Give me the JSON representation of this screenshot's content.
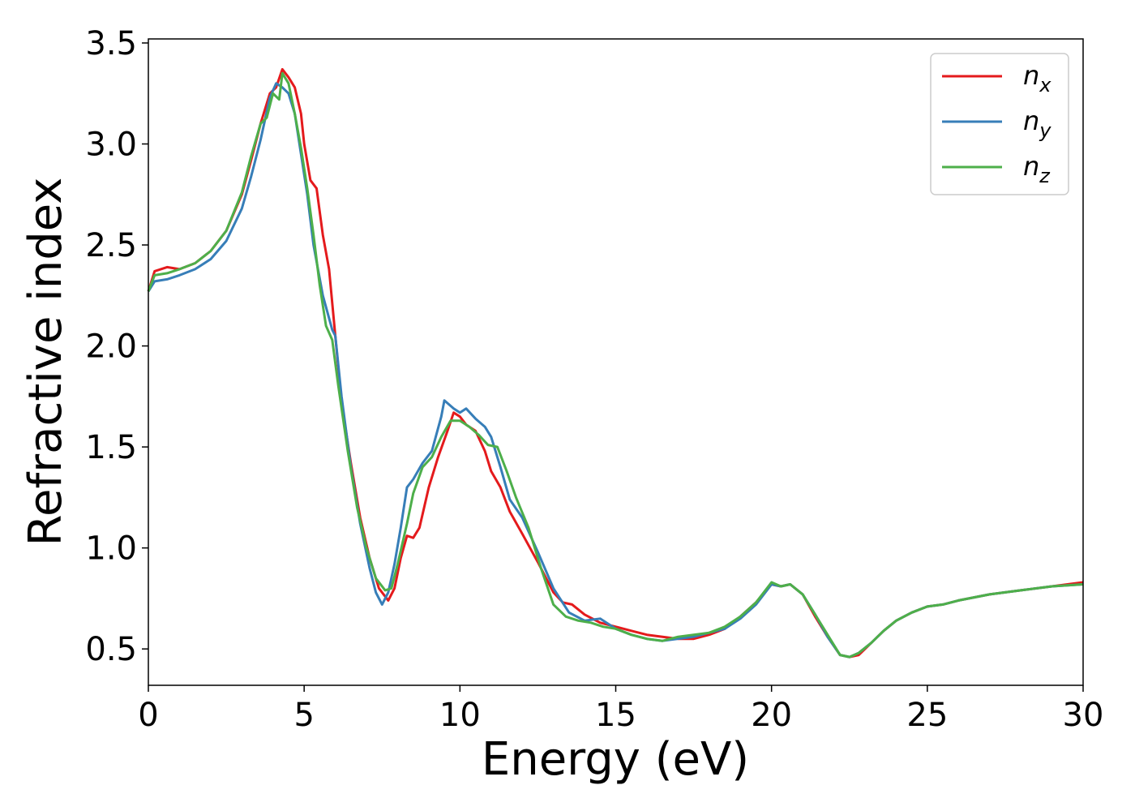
{
  "chart_data": {
    "type": "line",
    "title": "",
    "xlabel": "Energy (eV)",
    "ylabel": "Refractive index",
    "xlim": [
      0,
      30
    ],
    "ylim": [
      0.32,
      3.52
    ],
    "xticks": [
      0,
      5,
      10,
      15,
      20,
      25,
      30
    ],
    "xtick_labels": [
      "0",
      "5",
      "10",
      "15",
      "20",
      "25",
      "30"
    ],
    "yticks": [
      0.5,
      1.0,
      1.5,
      2.0,
      2.5,
      3.0,
      3.5
    ],
    "ytick_labels": [
      "0.5",
      "1.0",
      "1.5",
      "2.0",
      "2.5",
      "3.0",
      "3.5"
    ],
    "grid": false,
    "legend_position": "top-right",
    "series": [
      {
        "name": "n",
        "subscript": "x",
        "color": "#e41a1c",
        "points": [
          [
            0,
            2.27
          ],
          [
            0.2,
            2.37
          ],
          [
            0.6,
            2.39
          ],
          [
            1,
            2.38
          ],
          [
            1.5,
            2.41
          ],
          [
            2,
            2.47
          ],
          [
            2.5,
            2.57
          ],
          [
            3,
            2.75
          ],
          [
            3.3,
            2.92
          ],
          [
            3.6,
            3.1
          ],
          [
            3.9,
            3.25
          ],
          [
            4.1,
            3.28
          ],
          [
            4.3,
            3.37
          ],
          [
            4.5,
            3.33
          ],
          [
            4.7,
            3.28
          ],
          [
            4.9,
            3.15
          ],
          [
            5.0,
            3.0
          ],
          [
            5.2,
            2.82
          ],
          [
            5.4,
            2.78
          ],
          [
            5.6,
            2.55
          ],
          [
            5.8,
            2.38
          ],
          [
            6.0,
            2.05
          ],
          [
            6.2,
            1.72
          ],
          [
            6.5,
            1.42
          ],
          [
            6.8,
            1.15
          ],
          [
            7.1,
            0.95
          ],
          [
            7.4,
            0.8
          ],
          [
            7.7,
            0.74
          ],
          [
            7.9,
            0.8
          ],
          [
            8.1,
            0.95
          ],
          [
            8.3,
            1.06
          ],
          [
            8.5,
            1.05
          ],
          [
            8.7,
            1.1
          ],
          [
            9.0,
            1.3
          ],
          [
            9.3,
            1.45
          ],
          [
            9.6,
            1.58
          ],
          [
            9.8,
            1.67
          ],
          [
            10.0,
            1.65
          ],
          [
            10.2,
            1.61
          ],
          [
            10.5,
            1.58
          ],
          [
            10.8,
            1.48
          ],
          [
            11.0,
            1.38
          ],
          [
            11.3,
            1.3
          ],
          [
            11.6,
            1.18
          ],
          [
            12.0,
            1.07
          ],
          [
            12.5,
            0.93
          ],
          [
            13.0,
            0.78
          ],
          [
            13.3,
            0.73
          ],
          [
            13.6,
            0.72
          ],
          [
            14.0,
            0.67
          ],
          [
            14.5,
            0.63
          ],
          [
            15.0,
            0.61
          ],
          [
            15.5,
            0.59
          ],
          [
            16.0,
            0.57
          ],
          [
            16.5,
            0.56
          ],
          [
            17.0,
            0.55
          ],
          [
            17.5,
            0.55
          ],
          [
            18.0,
            0.57
          ],
          [
            18.5,
            0.6
          ],
          [
            19.0,
            0.66
          ],
          [
            19.5,
            0.73
          ],
          [
            20.0,
            0.82
          ],
          [
            20.3,
            0.81
          ],
          [
            20.6,
            0.82
          ],
          [
            21.0,
            0.77
          ],
          [
            21.4,
            0.66
          ],
          [
            21.8,
            0.56
          ],
          [
            22.2,
            0.47
          ],
          [
            22.5,
            0.46
          ],
          [
            22.8,
            0.47
          ],
          [
            23.2,
            0.53
          ],
          [
            23.6,
            0.59
          ],
          [
            24.0,
            0.64
          ],
          [
            24.5,
            0.68
          ],
          [
            25.0,
            0.71
          ],
          [
            25.5,
            0.72
          ],
          [
            26.0,
            0.74
          ],
          [
            27.0,
            0.77
          ],
          [
            28.0,
            0.79
          ],
          [
            29.0,
            0.81
          ],
          [
            30,
            0.83
          ]
        ]
      },
      {
        "name": "n",
        "subscript": "y",
        "color": "#377eb8",
        "points": [
          [
            0,
            2.27
          ],
          [
            0.2,
            2.32
          ],
          [
            0.6,
            2.33
          ],
          [
            1,
            2.35
          ],
          [
            1.5,
            2.38
          ],
          [
            2,
            2.43
          ],
          [
            2.5,
            2.52
          ],
          [
            3,
            2.68
          ],
          [
            3.3,
            2.84
          ],
          [
            3.6,
            3.02
          ],
          [
            3.9,
            3.23
          ],
          [
            4.1,
            3.3
          ],
          [
            4.3,
            3.28
          ],
          [
            4.5,
            3.25
          ],
          [
            4.7,
            3.15
          ],
          [
            4.9,
            2.95
          ],
          [
            5.1,
            2.75
          ],
          [
            5.3,
            2.5
          ],
          [
            5.6,
            2.25
          ],
          [
            5.9,
            2.08
          ],
          [
            6.0,
            2.05
          ],
          [
            6.2,
            1.75
          ],
          [
            6.5,
            1.4
          ],
          [
            6.8,
            1.12
          ],
          [
            7.1,
            0.9
          ],
          [
            7.3,
            0.78
          ],
          [
            7.5,
            0.72
          ],
          [
            7.7,
            0.78
          ],
          [
            7.9,
            0.92
          ],
          [
            8.1,
            1.1
          ],
          [
            8.3,
            1.3
          ],
          [
            8.5,
            1.34
          ],
          [
            8.8,
            1.42
          ],
          [
            9.1,
            1.48
          ],
          [
            9.4,
            1.65
          ],
          [
            9.5,
            1.73
          ],
          [
            9.8,
            1.69
          ],
          [
            10.0,
            1.67
          ],
          [
            10.2,
            1.69
          ],
          [
            10.5,
            1.64
          ],
          [
            10.8,
            1.6
          ],
          [
            11.0,
            1.55
          ],
          [
            11.3,
            1.4
          ],
          [
            11.6,
            1.24
          ],
          [
            12.0,
            1.15
          ],
          [
            12.5,
            0.98
          ],
          [
            13.0,
            0.8
          ],
          [
            13.5,
            0.68
          ],
          [
            14.0,
            0.64
          ],
          [
            14.5,
            0.65
          ],
          [
            15.0,
            0.6
          ],
          [
            15.5,
            0.57
          ],
          [
            16.0,
            0.55
          ],
          [
            16.5,
            0.54
          ],
          [
            17.0,
            0.55
          ],
          [
            17.5,
            0.56
          ],
          [
            18.0,
            0.58
          ],
          [
            18.5,
            0.6
          ],
          [
            19.0,
            0.65
          ],
          [
            19.5,
            0.72
          ],
          [
            20.0,
            0.82
          ],
          [
            20.3,
            0.81
          ],
          [
            20.6,
            0.82
          ],
          [
            21.0,
            0.77
          ],
          [
            21.4,
            0.67
          ],
          [
            21.8,
            0.56
          ],
          [
            22.2,
            0.47
          ],
          [
            22.5,
            0.46
          ],
          [
            22.8,
            0.48
          ],
          [
            23.2,
            0.53
          ],
          [
            23.6,
            0.59
          ],
          [
            24.0,
            0.64
          ],
          [
            24.5,
            0.68
          ],
          [
            25.0,
            0.71
          ],
          [
            25.5,
            0.72
          ],
          [
            26.0,
            0.74
          ],
          [
            27.0,
            0.77
          ],
          [
            28.0,
            0.79
          ],
          [
            29.0,
            0.81
          ],
          [
            30,
            0.82
          ]
        ]
      },
      {
        "name": "n",
        "subscript": "z",
        "color": "#4daf4a",
        "points": [
          [
            0,
            2.27
          ],
          [
            0.2,
            2.35
          ],
          [
            0.6,
            2.36
          ],
          [
            1,
            2.38
          ],
          [
            1.5,
            2.41
          ],
          [
            2,
            2.47
          ],
          [
            2.5,
            2.57
          ],
          [
            3,
            2.76
          ],
          [
            3.3,
            2.94
          ],
          [
            3.6,
            3.1
          ],
          [
            3.8,
            3.13
          ],
          [
            4.0,
            3.25
          ],
          [
            4.2,
            3.22
          ],
          [
            4.3,
            3.35
          ],
          [
            4.5,
            3.3
          ],
          [
            4.7,
            3.15
          ],
          [
            4.9,
            2.98
          ],
          [
            5.1,
            2.78
          ],
          [
            5.3,
            2.55
          ],
          [
            5.5,
            2.3
          ],
          [
            5.7,
            2.1
          ],
          [
            5.9,
            2.03
          ],
          [
            6.1,
            1.8
          ],
          [
            6.4,
            1.48
          ],
          [
            6.7,
            1.2
          ],
          [
            7.0,
            1.0
          ],
          [
            7.3,
            0.85
          ],
          [
            7.6,
            0.79
          ],
          [
            7.8,
            0.8
          ],
          [
            8.0,
            0.92
          ],
          [
            8.3,
            1.12
          ],
          [
            8.5,
            1.27
          ],
          [
            8.8,
            1.4
          ],
          [
            9.1,
            1.45
          ],
          [
            9.4,
            1.55
          ],
          [
            9.7,
            1.63
          ],
          [
            10.0,
            1.63
          ],
          [
            10.3,
            1.6
          ],
          [
            10.6,
            1.56
          ],
          [
            10.9,
            1.51
          ],
          [
            11.2,
            1.5
          ],
          [
            11.5,
            1.38
          ],
          [
            11.8,
            1.25
          ],
          [
            12.2,
            1.1
          ],
          [
            12.6,
            0.9
          ],
          [
            13.0,
            0.72
          ],
          [
            13.4,
            0.66
          ],
          [
            13.8,
            0.64
          ],
          [
            14.2,
            0.63
          ],
          [
            14.6,
            0.61
          ],
          [
            15.0,
            0.6
          ],
          [
            15.5,
            0.57
          ],
          [
            16.0,
            0.55
          ],
          [
            16.5,
            0.54
          ],
          [
            17.0,
            0.56
          ],
          [
            17.5,
            0.57
          ],
          [
            18.0,
            0.58
          ],
          [
            18.5,
            0.61
          ],
          [
            19.0,
            0.66
          ],
          [
            19.5,
            0.73
          ],
          [
            20.0,
            0.83
          ],
          [
            20.3,
            0.81
          ],
          [
            20.6,
            0.82
          ],
          [
            21.0,
            0.77
          ],
          [
            21.4,
            0.67
          ],
          [
            21.8,
            0.57
          ],
          [
            22.2,
            0.47
          ],
          [
            22.5,
            0.46
          ],
          [
            22.8,
            0.48
          ],
          [
            23.2,
            0.53
          ],
          [
            23.6,
            0.59
          ],
          [
            24.0,
            0.64
          ],
          [
            24.5,
            0.68
          ],
          [
            25.0,
            0.71
          ],
          [
            25.5,
            0.72
          ],
          [
            26.0,
            0.74
          ],
          [
            27.0,
            0.77
          ],
          [
            28.0,
            0.79
          ],
          [
            29.0,
            0.81
          ],
          [
            30,
            0.82
          ]
        ]
      }
    ]
  }
}
